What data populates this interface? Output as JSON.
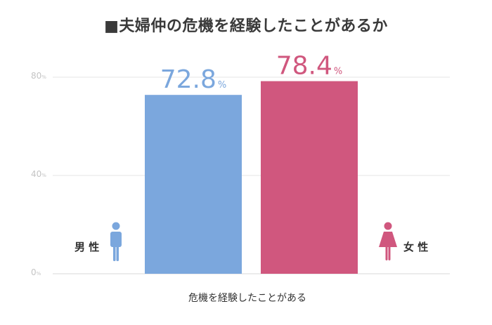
{
  "title": "■夫婦仲の危機を経験したことがあるか",
  "chart_data": {
    "type": "bar",
    "title": "■夫婦仲の危機を経験したことがあるか",
    "categories": [
      "危機を経験したことがある"
    ],
    "series": [
      {
        "name": "男性",
        "values": [
          72.8
        ],
        "color": "#7ba7dd",
        "icon": "male-person-icon"
      },
      {
        "name": "女性",
        "values": [
          78.4
        ],
        "color": "#d0577e",
        "icon": "female-person-icon"
      }
    ],
    "data_labels": [
      "72.8",
      "78.4"
    ],
    "value_unit": "%",
    "yticks": [
      "0",
      "40",
      "80"
    ],
    "ytick_unit": "%",
    "ylim": [
      0,
      95
    ],
    "xlabel": "危機を経験したことがある",
    "ylabel": "",
    "grid": true,
    "legend": "beside-bars"
  }
}
